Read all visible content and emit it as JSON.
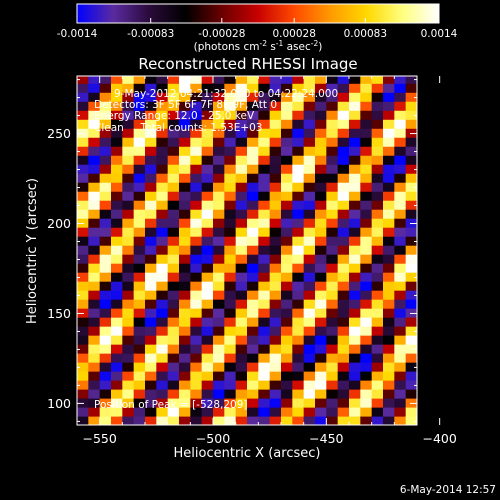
{
  "colorbar": {
    "min": -0.0014,
    "max": 0.0014,
    "tick_labels": [
      "-0.0014",
      "-0.00083",
      "-0.00028",
      "0.00028",
      "0.00083",
      "0.0014"
    ],
    "unit_main": "(photons cm",
    "unit_exp1": "-2",
    "unit_mid": " s",
    "unit_exp2": "-1",
    "unit_mid2": " asec",
    "unit_exp3": "-2",
    "unit_end": ")",
    "colormap": [
      "#0000ff",
      "#5a2ba0",
      "#2a0a3a",
      "#000000",
      "#6a0000",
      "#c80000",
      "#ff4a00",
      "#ff9a00",
      "#ffd800",
      "#ffff80",
      "#ffffff"
    ]
  },
  "chart_data": {
    "type": "heatmap",
    "title": "Reconstructed RHESSI Image",
    "xlabel": "Heliocentric X (arcsec)",
    "ylabel": "Heliocentric Y (arcsec)",
    "xlim": [
      -560,
      -410
    ],
    "ylim": [
      88,
      282
    ],
    "x_ticks": [
      -550,
      -500,
      -450,
      -400
    ],
    "y_ticks": [
      100,
      150,
      200,
      250
    ],
    "x_tick_labels": [
      "−550",
      "−500",
      "−450",
      "−400"
    ],
    "y_tick_labels": [
      "100",
      "150",
      "200",
      "250"
    ],
    "annotations": [
      "9-May-2012 04:21:32.000 to 04:22:24.000",
      "Detectors: 3F 5F 6F 7F 8F 9F, Att 0",
      "Energy Range: 12.0 - 25.0 keV",
      "Clean     Total counts: 1.53E+03"
    ],
    "peak_label": "Position of Peak = [-528,209]",
    "peak": {
      "x": -528,
      "y": 209
    },
    "pattern": {
      "description": "diagonal stripe pattern",
      "stripe_slope": 1.6,
      "stripe_period_x": 27,
      "grid_step": 5
    }
  },
  "footer": {
    "timestamp": "6-May-2014 12:57"
  }
}
